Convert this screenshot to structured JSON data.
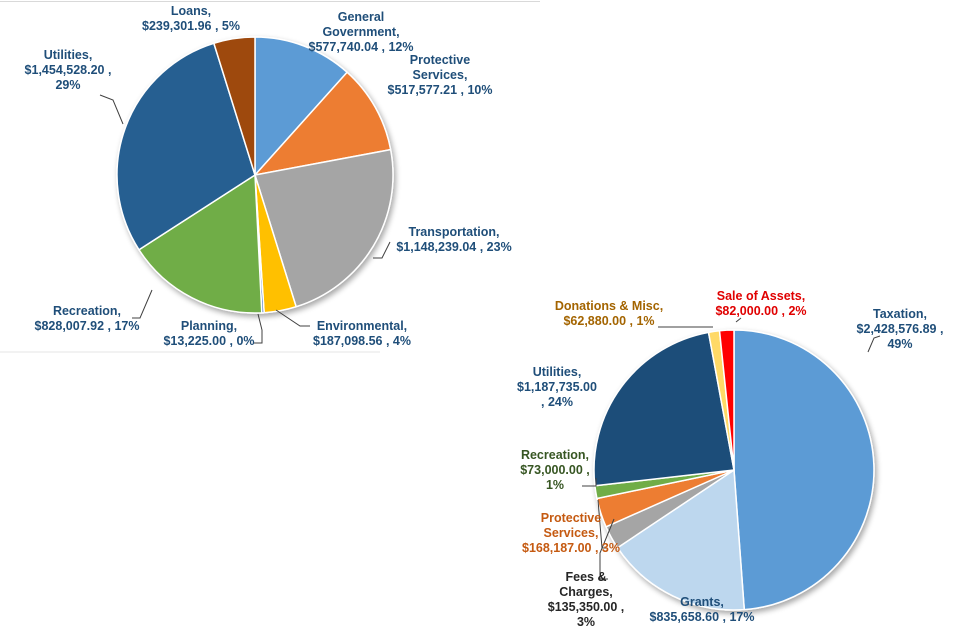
{
  "chart_data": [
    {
      "type": "pie",
      "title": "",
      "slices": [
        {
          "name": "General Government",
          "value": 577740.04,
          "percent": 12,
          "color": "#5b9bd5",
          "label_color": "#1f4e79",
          "label_lines": [
            "General",
            "Government,",
            "$577,740.04 , 12%"
          ]
        },
        {
          "name": "Protective Services",
          "value": 517577.21,
          "percent": 10,
          "color": "#ed7d31",
          "label_color": "#1f4e79",
          "label_lines": [
            "Protective",
            "Services,",
            "$517,577.21 , 10%"
          ]
        },
        {
          "name": "Transportation",
          "value": 1148239.04,
          "percent": 23,
          "color": "#a5a5a5",
          "label_color": "#1f4e79",
          "label_lines": [
            "Transportation,",
            "$1,148,239.04 , 23%"
          ]
        },
        {
          "name": "Environmental",
          "value": 187098.56,
          "percent": 4,
          "color": "#ffc000",
          "label_color": "#1f4e79",
          "label_lines": [
            "Environmental,",
            "$187,098.56 , 4%"
          ]
        },
        {
          "name": "Planning",
          "value": 13225.0,
          "percent": 0,
          "color": "#4472c4",
          "label_color": "#1f4e79",
          "label_lines": [
            "Planning,",
            "$13,225.00 , 0%"
          ]
        },
        {
          "name": "Recreation",
          "value": 828007.92,
          "percent": 17,
          "color": "#70ad47",
          "label_color": "#1f4e79",
          "label_lines": [
            "Recreation,",
            "$828,007.92 , 17%"
          ]
        },
        {
          "name": "Utilities",
          "value": 1454528.2,
          "percent": 29,
          "color": "#255e91",
          "label_color": "#1f4e79",
          "label_lines": [
            "Utilities,",
            "$1,454,528.20 ,",
            "29%"
          ]
        },
        {
          "name": "Loans",
          "value": 239301.96,
          "percent": 5,
          "color": "#9e480e",
          "label_color": "#1f4e79",
          "label_lines": [
            "Loans,",
            "$239,301.96 , 5%"
          ]
        }
      ]
    },
    {
      "type": "pie",
      "title": "",
      "slices": [
        {
          "name": "Taxation",
          "value": 2428576.89,
          "percent": 49,
          "color": "#5b9bd5",
          "label_color": "#1f4e79",
          "label_lines": [
            "Taxation,",
            "$2,428,576.89 ,",
            "49%"
          ]
        },
        {
          "name": "Grants",
          "value": 835658.6,
          "percent": 17,
          "color": "#bdd7ee",
          "label_color": "#1f4e79",
          "label_lines": [
            "Grants,",
            "$835,658.60 , 17%"
          ]
        },
        {
          "name": "Fees & Charges",
          "value": 135350.0,
          "percent": 3,
          "color": "#a5a5a5",
          "label_color": "#262626",
          "label_lines": [
            "Fees &",
            "Charges,",
            "$135,350.00 ,",
            "3%"
          ]
        },
        {
          "name": "Protective Services",
          "value": 168187.0,
          "percent": 3,
          "color": "#ed7d31",
          "label_color": "#c55a11",
          "label_lines": [
            "Protective",
            "Services,",
            "$168,187.00 , 3%"
          ]
        },
        {
          "name": "Recreation",
          "value": 73000.0,
          "percent": 1,
          "color": "#70ad47",
          "label_color": "#375623",
          "label_lines": [
            "Recreation,",
            "$73,000.00 ,",
            "1%"
          ]
        },
        {
          "name": "Utilities",
          "value": 1187735.0,
          "percent": 24,
          "color": "#1f4e79",
          "label_color": "#1f4e79",
          "label_lines": [
            "Utilities,",
            "$1,187,735.00",
            ", 24%"
          ]
        },
        {
          "name": "Donations & Misc",
          "value": 62880.0,
          "percent": 1,
          "color": "#ffd966",
          "label_color": "#a36400",
          "label_lines": [
            "Donations & Misc,",
            "$62,880.00 , 1%"
          ]
        },
        {
          "name": "Sale of Assets",
          "value": 82000.0,
          "percent": 2,
          "color": "#ff0000",
          "label_color": "#e00000",
          "label_lines": [
            "Sale of Assets,",
            "$82,000.00 , 2%"
          ]
        }
      ]
    }
  ]
}
